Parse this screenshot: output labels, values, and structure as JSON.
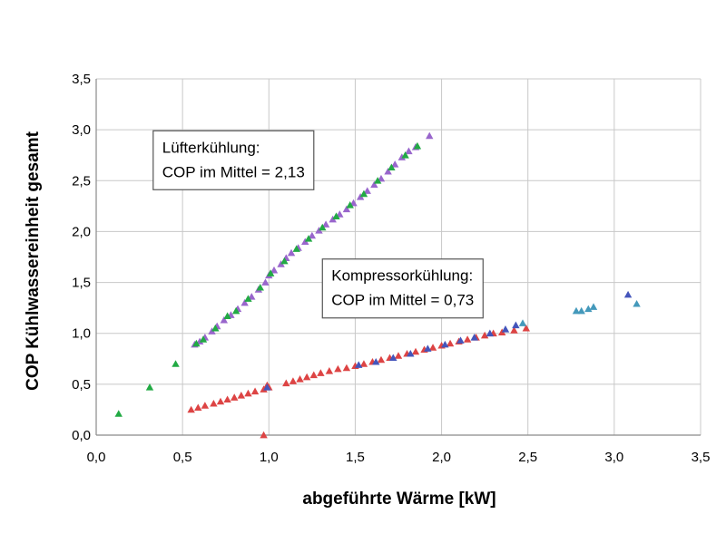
{
  "chart_data": {
    "type": "scatter",
    "xlabel": "abgeführte Wärme [kW]",
    "ylabel": "COP Kühlwassereinheit gesamt",
    "xlim": [
      0.0,
      3.5
    ],
    "ylim": [
      0.0,
      3.5
    ],
    "x_ticks": [
      "0,0",
      "0,5",
      "1,0",
      "1,5",
      "2,0",
      "2,5",
      "3,0",
      "3,5"
    ],
    "y_ticks": [
      "0,0",
      "0,5",
      "1,0",
      "1,5",
      "2,0",
      "2,5",
      "3,0",
      "3,5"
    ],
    "grid": true,
    "annotations": [
      {
        "lines": [
          "Lüfterkühlung:",
          "COP im Mittel = 2,13"
        ],
        "anchor": [
          0.33,
          2.99
        ]
      },
      {
        "lines": [
          "Kompressorkühlung:",
          "COP im Mittel = 0,73"
        ],
        "anchor": [
          1.31,
          1.73
        ]
      }
    ],
    "series": [
      {
        "color": "#9966cc",
        "points": [
          [
            0.57,
            0.89
          ],
          [
            0.6,
            0.92
          ],
          [
            0.63,
            0.96
          ],
          [
            0.67,
            1.02
          ],
          [
            0.7,
            1.07
          ],
          [
            0.74,
            1.13
          ],
          [
            0.78,
            1.18
          ],
          [
            0.82,
            1.24
          ],
          [
            0.86,
            1.3
          ],
          [
            0.9,
            1.36
          ],
          [
            0.94,
            1.43
          ],
          [
            0.98,
            1.5
          ],
          [
            1.0,
            1.57
          ],
          [
            1.03,
            1.62
          ],
          [
            1.07,
            1.68
          ],
          [
            1.1,
            1.74
          ],
          [
            1.13,
            1.79
          ],
          [
            1.17,
            1.84
          ],
          [
            1.21,
            1.9
          ],
          [
            1.25,
            1.96
          ],
          [
            1.29,
            2.01
          ],
          [
            1.33,
            2.07
          ],
          [
            1.37,
            2.12
          ],
          [
            1.41,
            2.17
          ],
          [
            1.45,
            2.22
          ],
          [
            1.49,
            2.28
          ],
          [
            1.53,
            2.34
          ],
          [
            1.57,
            2.4
          ],
          [
            1.61,
            2.46
          ],
          [
            1.65,
            2.52
          ],
          [
            1.69,
            2.59
          ],
          [
            1.73,
            2.66
          ],
          [
            1.77,
            2.73
          ],
          [
            1.81,
            2.79
          ],
          [
            1.85,
            2.83
          ],
          [
            1.93,
            2.94
          ]
        ]
      },
      {
        "color": "#22aa44",
        "points": [
          [
            0.13,
            0.21
          ],
          [
            0.31,
            0.47
          ],
          [
            0.46,
            0.7
          ],
          [
            0.58,
            0.9
          ],
          [
            0.62,
            0.94
          ],
          [
            0.69,
            1.05
          ],
          [
            0.76,
            1.17
          ],
          [
            0.81,
            1.22
          ],
          [
            0.88,
            1.34
          ],
          [
            0.95,
            1.45
          ],
          [
            1.01,
            1.59
          ],
          [
            1.09,
            1.71
          ],
          [
            1.16,
            1.83
          ],
          [
            1.23,
            1.93
          ],
          [
            1.31,
            2.04
          ],
          [
            1.39,
            2.15
          ],
          [
            1.47,
            2.26
          ],
          [
            1.55,
            2.37
          ],
          [
            1.63,
            2.5
          ],
          [
            1.71,
            2.63
          ],
          [
            1.79,
            2.75
          ],
          [
            1.86,
            2.84
          ]
        ]
      },
      {
        "color": "#dd4444",
        "points": [
          [
            0.55,
            0.25
          ],
          [
            0.59,
            0.27
          ],
          [
            0.63,
            0.29
          ],
          [
            0.68,
            0.31
          ],
          [
            0.72,
            0.33
          ],
          [
            0.76,
            0.35
          ],
          [
            0.8,
            0.37
          ],
          [
            0.84,
            0.39
          ],
          [
            0.88,
            0.41
          ],
          [
            0.92,
            0.43
          ],
          [
            0.97,
            0.45
          ],
          [
            1.0,
            0.47
          ],
          [
            0.99,
            0.49
          ],
          [
            1.1,
            0.51
          ],
          [
            1.14,
            0.53
          ],
          [
            1.18,
            0.55
          ],
          [
            1.22,
            0.57
          ],
          [
            1.26,
            0.59
          ],
          [
            1.3,
            0.61
          ],
          [
            1.35,
            0.63
          ],
          [
            1.4,
            0.65
          ],
          [
            1.45,
            0.66
          ],
          [
            1.5,
            0.68
          ],
          [
            1.55,
            0.7
          ],
          [
            1.6,
            0.72
          ],
          [
            1.65,
            0.74
          ],
          [
            1.7,
            0.76
          ],
          [
            1.75,
            0.78
          ],
          [
            1.8,
            0.8
          ],
          [
            1.85,
            0.82
          ],
          [
            1.9,
            0.84
          ],
          [
            1.95,
            0.86
          ],
          [
            2.0,
            0.88
          ],
          [
            2.05,
            0.9
          ],
          [
            2.1,
            0.92
          ],
          [
            2.15,
            0.94
          ],
          [
            2.2,
            0.96
          ],
          [
            2.25,
            0.98
          ],
          [
            2.3,
            1.0
          ],
          [
            2.35,
            1.01
          ],
          [
            2.42,
            1.03
          ],
          [
            2.49,
            1.05
          ],
          [
            0.97,
            0.0
          ]
        ]
      },
      {
        "color": "#4455bb",
        "points": [
          [
            0.99,
            0.47
          ],
          [
            1.52,
            0.69
          ],
          [
            1.62,
            0.72
          ],
          [
            1.72,
            0.76
          ],
          [
            1.82,
            0.8
          ],
          [
            1.92,
            0.85
          ],
          [
            2.02,
            0.89
          ],
          [
            2.11,
            0.93
          ],
          [
            2.19,
            0.96
          ],
          [
            2.28,
            1.0
          ],
          [
            2.37,
            1.04
          ],
          [
            2.43,
            1.08
          ],
          [
            3.08,
            1.38
          ]
        ]
      },
      {
        "color": "#4499bb",
        "points": [
          [
            2.47,
            1.1
          ],
          [
            2.78,
            1.22
          ],
          [
            2.81,
            1.22
          ],
          [
            2.85,
            1.24
          ],
          [
            2.88,
            1.26
          ],
          [
            3.13,
            1.29
          ]
        ]
      }
    ]
  }
}
